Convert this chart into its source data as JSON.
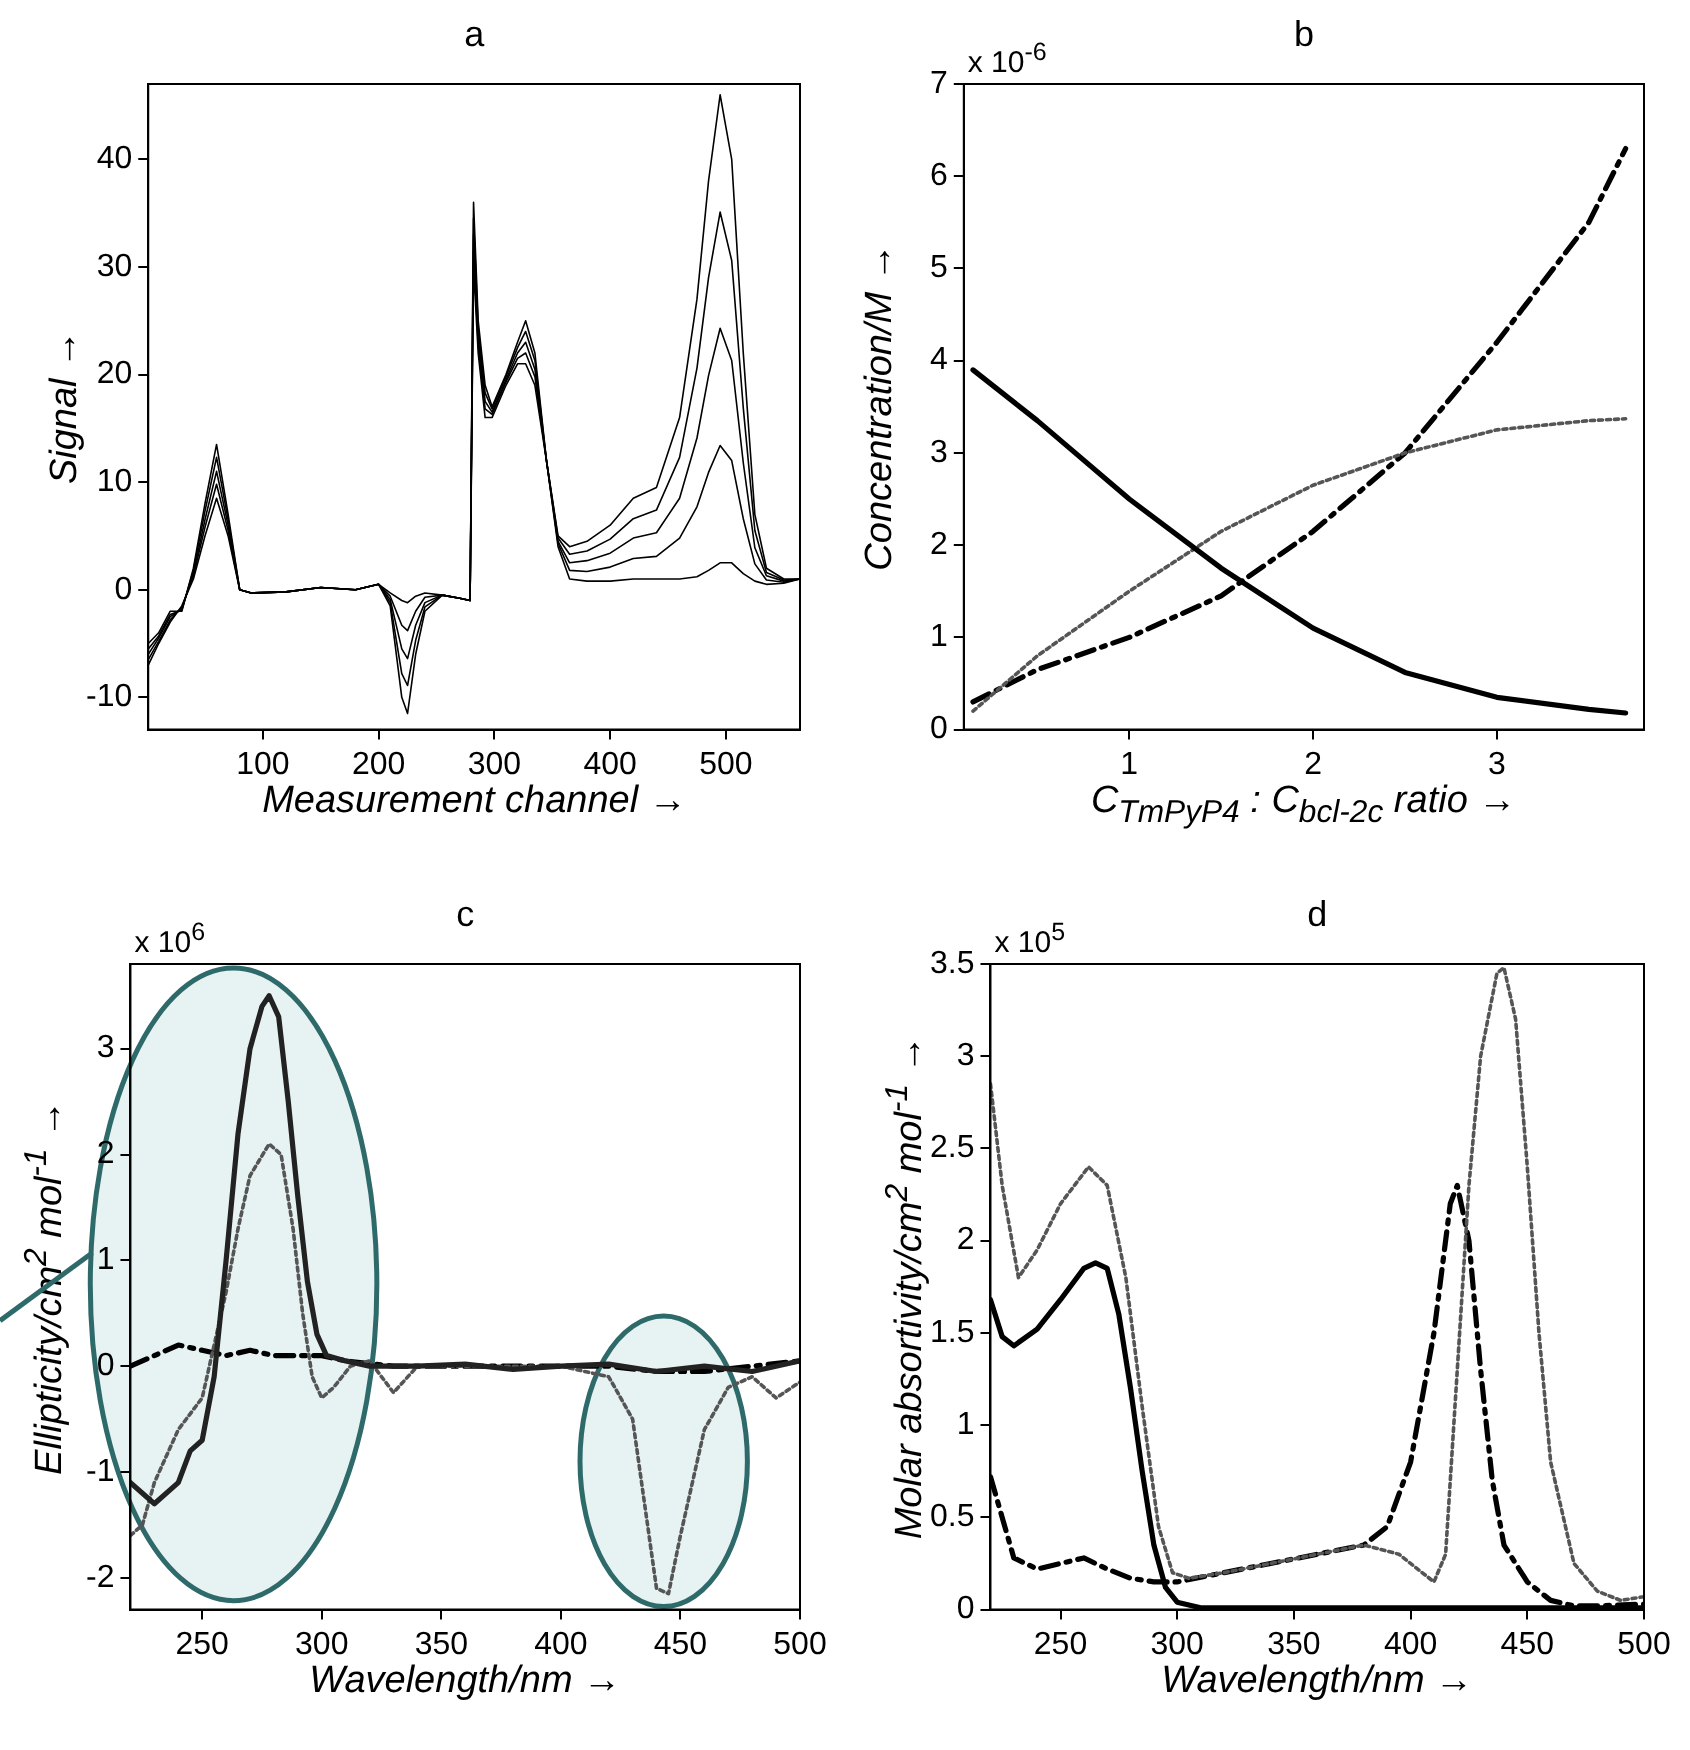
{
  "chart_data": [
    {
      "type": "line",
      "title": "a",
      "xlabel": "Measurement channel →",
      "ylabel": "Signal →",
      "x": [
        1,
        10,
        20,
        30,
        40,
        50,
        60,
        70,
        80,
        90,
        120,
        150,
        180,
        200,
        210,
        220,
        225,
        232,
        240,
        255,
        270,
        279,
        282,
        286,
        292,
        298,
        310,
        320,
        327,
        335,
        345,
        355,
        365,
        380,
        400,
        420,
        440,
        460,
        475,
        485,
        495,
        505,
        515,
        525,
        535,
        550,
        564
      ],
      "xlim": [
        1,
        564
      ],
      "xticks": [
        100,
        200,
        300,
        400,
        500
      ],
      "ylim": [
        -13,
        47
      ],
      "yticks": [
        -10,
        0,
        10,
        20,
        30,
        40
      ],
      "line_style": "solid",
      "marker": "none",
      "series": [
        {
          "color": "#000000",
          "values": [
            -7,
            -5,
            -3,
            -1.5,
            1,
            5,
            8.5,
            5,
            0,
            -0.3,
            -0.2,
            0.2,
            0,
            0.5,
            -0.3,
            -1,
            -1.2,
            -0.6,
            -0.3,
            -0.5,
            -0.8,
            -1,
            36,
            25,
            19,
            17,
            20,
            23,
            25,
            22,
            12,
            4,
            1,
            0.8,
            0.8,
            1,
            1,
            1,
            1.2,
            1.8,
            2.5,
            2.5,
            1.5,
            0.8,
            0.5,
            0.6,
            1
          ]
        },
        {
          "color": "#000000",
          "values": [
            -6.5,
            -4.8,
            -2.8,
            -1.6,
            1.3,
            5.8,
            9.8,
            5.5,
            0,
            -0.3,
            -0.2,
            0.2,
            0,
            0.5,
            -0.6,
            -3.3,
            -3.8,
            -2,
            -0.7,
            -0.5,
            -0.8,
            -1,
            34.5,
            24.3,
            18.3,
            16.8,
            19.8,
            22.5,
            24,
            21.3,
            12,
            4.3,
            1.8,
            1.7,
            2.1,
            2.9,
            3.1,
            4.8,
            7.7,
            10.9,
            13.4,
            12,
            6.6,
            2.4,
            0.9,
            0.7,
            1
          ]
        },
        {
          "color": "#000000",
          "values": [
            -6,
            -4.5,
            -2.5,
            -1.8,
            1.5,
            6.5,
            11,
            6,
            0,
            -0.3,
            -0.2,
            0.2,
            0,
            0.5,
            -0.9,
            -5.5,
            -6.4,
            -3.3,
            -1.2,
            -0.5,
            -0.8,
            -1,
            33,
            23.5,
            17.5,
            16.5,
            19.5,
            22,
            23,
            20.5,
            12,
            4.5,
            2.5,
            2.7,
            3.4,
            4.8,
            5.3,
            8.5,
            14.1,
            19.9,
            24.3,
            21.3,
            11.8,
            3.9,
            1.3,
            0.8,
            1
          ]
        },
        {
          "color": "#000000",
          "values": [
            -5.5,
            -4.3,
            -2.3,
            -1.9,
            1.8,
            7.3,
            12.3,
            6.5,
            0,
            -0.3,
            -0.2,
            0.2,
            0,
            0.5,
            -1.2,
            -7.8,
            -8.9,
            -4.7,
            -1.6,
            -0.5,
            -0.8,
            -1,
            31.5,
            22.8,
            16.8,
            16.3,
            19.3,
            21.5,
            22,
            19.8,
            12,
            4.8,
            3.3,
            3.6,
            4.7,
            6.6,
            7.4,
            12.3,
            20.6,
            29,
            35.1,
            30.6,
            16.9,
            5.5,
            1.6,
            0.9,
            1
          ]
        },
        {
          "color": "#000000",
          "values": [
            -5,
            -4,
            -2,
            -2,
            2,
            8,
            13.5,
            7,
            0,
            -0.3,
            -0.2,
            0.2,
            0,
            0.5,
            -1.5,
            -10,
            -11.5,
            -6,
            -2,
            -0.5,
            -0.8,
            -1,
            30,
            22,
            16,
            16,
            19,
            21,
            21,
            19,
            12,
            5,
            4,
            4.5,
            6,
            8.5,
            9.5,
            16,
            27,
            38,
            46,
            40,
            22,
            7,
            2,
            1,
            1
          ]
        }
      ]
    },
    {
      "type": "line",
      "title": "b",
      "xlabel": "C$_{TmPyP4}$ : C$_{bcl-2c}$ ratio →",
      "ylabel": "Concentration/M →",
      "annotations": [
        "x 10$^{-6}$"
      ],
      "x": [
        0.15,
        0.5,
        1.0,
        1.5,
        2.0,
        2.5,
        3.0,
        3.5,
        3.7
      ],
      "xlim": [
        0.1,
        3.8
      ],
      "xticks": [
        1,
        2,
        3
      ],
      "ylim": [
        0,
        7
      ],
      "yticks": [
        0,
        1,
        2,
        3,
        4,
        5,
        6,
        7
      ],
      "marker": "none",
      "series": [
        {
          "color": "#000000",
          "line_style": "solid",
          "values": [
            3.9,
            3.35,
            2.5,
            1.75,
            1.1,
            0.62,
            0.35,
            0.22,
            0.18
          ]
        },
        {
          "color": "#555555",
          "line_style": "dotted",
          "values": [
            0.2,
            0.8,
            1.5,
            2.15,
            2.65,
            3.0,
            3.25,
            3.35,
            3.37
          ]
        },
        {
          "color": "#000000",
          "line_style": "dashed",
          "values": [
            0.3,
            0.65,
            1.0,
            1.45,
            2.15,
            3.0,
            4.2,
            5.5,
            6.3
          ]
        }
      ]
    },
    {
      "type": "line",
      "title": "c",
      "xlabel": "Wavelength/nm →",
      "ylabel": "Ellipticity/cm$^{2}$ mol$^{-1}$ →",
      "annotations": [
        "x 10$^{6}$"
      ],
      "xlim": [
        220,
        500
      ],
      "xticks": [
        250,
        300,
        350,
        400,
        450,
        500
      ],
      "ylim": [
        -2.3,
        3.8
      ],
      "yticks": [
        -2,
        -1,
        0,
        1,
        2,
        3
      ],
      "marker": "none",
      "series": [
        {
          "color": "#222222",
          "line_style": "solid",
          "x": [
            220,
            230,
            240,
            245,
            250,
            255,
            260,
            265,
            270,
            275,
            278,
            282,
            286,
            290,
            294,
            298,
            302,
            310,
            320,
            340,
            360,
            380,
            400,
            420,
            440,
            460,
            480,
            500
          ],
          "values": [
            -1.1,
            -1.3,
            -1.1,
            -0.8,
            -0.7,
            -0.1,
            1.0,
            2.2,
            3.0,
            3.4,
            3.5,
            3.3,
            2.5,
            1.6,
            0.8,
            0.3,
            0.1,
            0.05,
            0.0,
            0.0,
            0.02,
            -0.03,
            0.0,
            0.02,
            -0.05,
            0.0,
            -0.05,
            0.05
          ]
        },
        {
          "color": "#555555",
          "line_style": "dotted",
          "x": [
            220,
            225,
            230,
            240,
            250,
            260,
            265,
            270,
            278,
            283,
            288,
            292,
            296,
            300,
            305,
            312,
            320,
            330,
            340,
            360,
            400,
            420,
            430,
            435,
            440,
            445,
            450,
            460,
            470,
            480,
            490,
            500
          ],
          "values": [
            -1.6,
            -1.5,
            -1.1,
            -0.6,
            -0.3,
            0.7,
            1.3,
            1.8,
            2.1,
            2.0,
            1.3,
            0.5,
            -0.1,
            -0.3,
            -0.2,
            0.0,
            0.05,
            -0.25,
            0.0,
            0.0,
            0.0,
            -0.1,
            -0.5,
            -1.3,
            -2.1,
            -2.15,
            -1.6,
            -0.6,
            -0.2,
            -0.1,
            -0.3,
            -0.15
          ]
        },
        {
          "color": "#000000",
          "line_style": "dashed",
          "x": [
            220,
            230,
            240,
            250,
            260,
            270,
            280,
            290,
            300,
            310,
            330,
            360,
            400,
            420,
            440,
            460,
            480,
            500
          ],
          "values": [
            0.0,
            0.1,
            0.2,
            0.15,
            0.1,
            0.15,
            0.1,
            0.1,
            0.1,
            0.05,
            0.0,
            0.0,
            0.0,
            0.0,
            -0.05,
            -0.05,
            0.0,
            0.05
          ]
        }
      ]
    },
    {
      "type": "line",
      "title": "d",
      "xlabel": "Wavelength/nm →",
      "ylabel": "Molar absortivity/cm$^{2}$ mol$^{-1}$ →",
      "annotations": [
        "x 10$^{5}$"
      ],
      "xlim": [
        220,
        500
      ],
      "xticks": [
        250,
        300,
        350,
        400,
        450,
        500
      ],
      "ylim": [
        0,
        3.5
      ],
      "yticks": [
        0,
        0.5,
        1,
        1.5,
        2,
        2.5,
        3,
        3.5
      ],
      "marker": "none",
      "series": [
        {
          "color": "#000000",
          "line_style": "solid",
          "x": [
            220,
            225,
            230,
            240,
            250,
            260,
            265,
            270,
            275,
            280,
            285,
            290,
            295,
            300,
            310,
            330,
            400,
            500
          ],
          "values": [
            1.68,
            1.48,
            1.43,
            1.52,
            1.68,
            1.85,
            1.88,
            1.85,
            1.6,
            1.2,
            0.75,
            0.35,
            0.12,
            0.04,
            0.01,
            0.01,
            0.01,
            0.01
          ]
        },
        {
          "color": "#555555",
          "line_style": "dotted",
          "x": [
            220,
            225,
            232,
            240,
            250,
            262,
            270,
            278,
            285,
            292,
            298,
            305,
            320,
            340,
            360,
            380,
            395,
            410,
            415,
            420,
            425,
            430,
            437,
            440,
            445,
            450,
            455,
            460,
            470,
            480,
            490,
            500
          ],
          "values": [
            2.85,
            2.3,
            1.8,
            1.95,
            2.2,
            2.4,
            2.3,
            1.8,
            1.1,
            0.45,
            0.2,
            0.17,
            0.2,
            0.25,
            0.3,
            0.35,
            0.3,
            0.15,
            0.3,
            1.3,
            2.3,
            3.0,
            3.45,
            3.48,
            3.2,
            2.4,
            1.5,
            0.8,
            0.25,
            0.1,
            0.05,
            0.07
          ]
        },
        {
          "color": "#000000",
          "line_style": "dashed",
          "x": [
            220,
            225,
            230,
            240,
            250,
            260,
            270,
            280,
            290,
            300,
            320,
            340,
            360,
            380,
            390,
            400,
            410,
            417,
            420,
            425,
            430,
            435,
            440,
            450,
            460,
            470,
            480,
            500
          ],
          "values": [
            0.72,
            0.5,
            0.28,
            0.22,
            0.25,
            0.28,
            0.22,
            0.17,
            0.15,
            0.15,
            0.2,
            0.25,
            0.3,
            0.35,
            0.45,
            0.8,
            1.5,
            2.2,
            2.3,
            2.0,
            1.3,
            0.7,
            0.35,
            0.15,
            0.05,
            0.02,
            0.02,
            0.03
          ]
        }
      ]
    }
  ]
}
